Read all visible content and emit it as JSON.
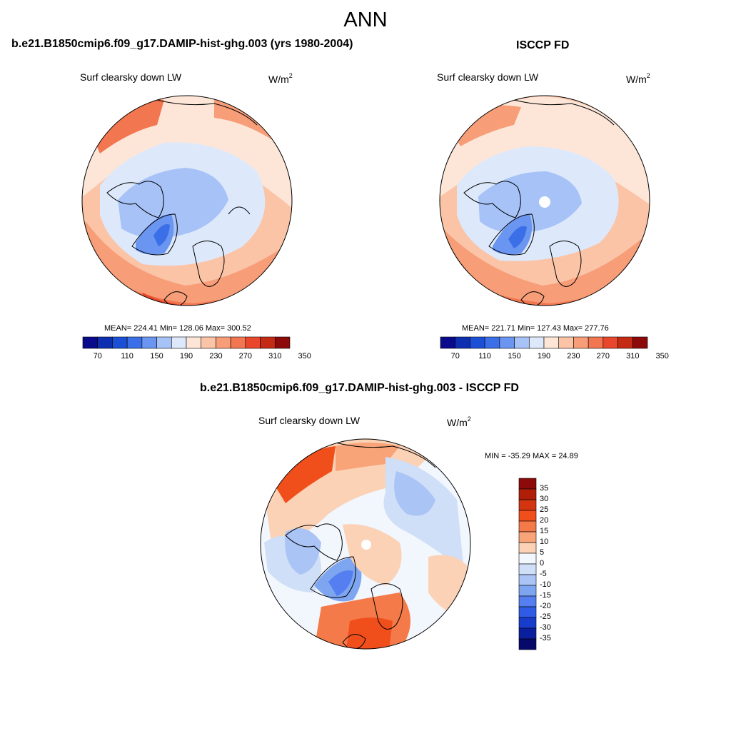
{
  "page_title": "ANN",
  "panels": [
    {
      "title": "b.e21.B1850cmip6.f09_g17.DAMIP-hist-ghg.003 (yrs 1980-2004)",
      "variable": "Surf clearsky down LW",
      "units_base": "W/m",
      "units_exp": "2",
      "stats": "MEAN= 224.41  Min= 128.06  Max= 300.52",
      "colorbar_ticks": [
        "70",
        "110",
        "150",
        "190",
        "230",
        "270",
        "310",
        "350"
      ]
    },
    {
      "title": "ISCCP FD",
      "variable": "Surf clearsky down LW",
      "units_base": "W/m",
      "units_exp": "2",
      "stats": "MEAN= 221.71  Min= 127.43  Max= 277.76",
      "colorbar_ticks": [
        "70",
        "110",
        "150",
        "190",
        "230",
        "270",
        "310",
        "350"
      ]
    },
    {
      "title": "b.e21.B1850cmip6.f09_g17.DAMIP-hist-ghg.003 - ISCCP FD",
      "variable": "Surf clearsky down LW",
      "units_base": "W/m",
      "units_exp": "2",
      "stats": "MIN = -35.29 MAX =  24.89",
      "colorbar_ticks": [
        "35",
        "30",
        "25",
        "20",
        "15",
        "10",
        "5",
        "0",
        "-5",
        "-10",
        "-15",
        "-20",
        "-25",
        "-30",
        "-35"
      ]
    }
  ],
  "colors": {
    "abs_scale": [
      "#0a0a8c",
      "#0d2fb0",
      "#1a4fd6",
      "#3a6fe8",
      "#6a95f0",
      "#a6c2f7",
      "#dde9fb",
      "#fde6d8",
      "#fbc4a6",
      "#f79d78",
      "#f2764f",
      "#e8472c",
      "#c42a14",
      "#8c0a0a"
    ],
    "diff_scale": [
      "#8c0a0a",
      "#b01e08",
      "#d23510",
      "#f04f1c",
      "#f57a4a",
      "#f8a378",
      "#fbd2b6",
      "#f2f6fd",
      "#cfdff8",
      "#a9c4f5",
      "#7ea5f0",
      "#557ff0",
      "#2f5be6",
      "#183ccc",
      "#0a1f9e",
      "#06086a"
    ]
  }
}
